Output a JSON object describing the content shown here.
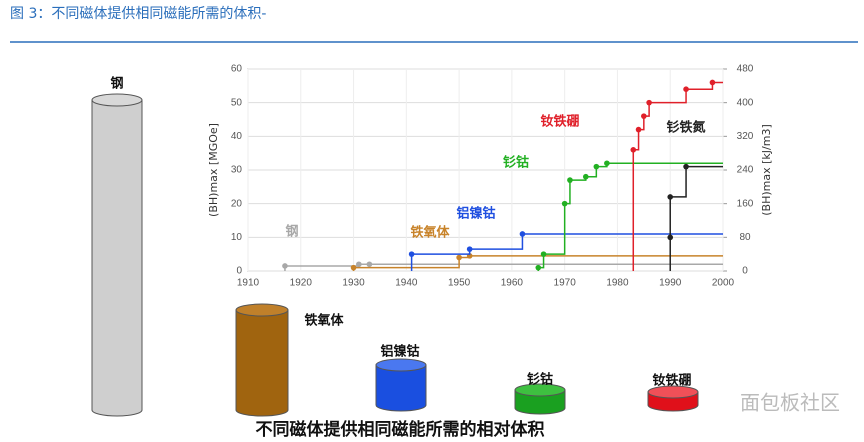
{
  "caption": "图 3：不同磁体提供相同磁能所需的体积-",
  "chart_data": {
    "type": "step",
    "y_label": "(BH)max [MGOe]",
    "y2_label": "(BH)max [kJ/m3]",
    "xlim": [
      1910,
      2000
    ],
    "xticks": [
      1910,
      1920,
      1930,
      1940,
      1950,
      1960,
      1970,
      1980,
      1990,
      2000
    ],
    "ylim": [
      0,
      60
    ],
    "yticks": [
      0,
      10,
      20,
      30,
      40,
      50,
      60
    ],
    "y2lim": [
      0,
      480
    ],
    "y2ticks": [
      0,
      80,
      160,
      240,
      320,
      400,
      480
    ],
    "series": [
      {
        "name": "钢",
        "color": "#a8a8a8",
        "x": [
          1917,
          1931,
          1933
        ],
        "values": [
          1.5,
          2,
          2
        ]
      },
      {
        "name": "铁氧体",
        "color": "#c8832a",
        "x": [
          1930,
          1950,
          1952
        ],
        "values": [
          1,
          4,
          4.5
        ]
      },
      {
        "name": "铝镍钴",
        "color": "#1f4fe0",
        "x": [
          1941,
          1952,
          1962
        ],
        "values": [
          5,
          6.5,
          11
        ]
      },
      {
        "name": "钐钴",
        "color": "#22b022",
        "x": [
          1965,
          1966,
          1970,
          1971,
          1974,
          1976,
          1978
        ],
        "values": [
          1,
          5,
          20,
          27,
          28,
          31,
          32
        ]
      },
      {
        "name": "钕铁硼",
        "color": "#e0202a",
        "x": [
          1983,
          1984,
          1985,
          1986,
          1993,
          1998
        ],
        "values": [
          36,
          42,
          46,
          50,
          54,
          56
        ]
      },
      {
        "name": "钐铁氮",
        "color": "#222222",
        "x": [
          1990,
          1990,
          1993
        ],
        "values": [
          10,
          22,
          31
        ]
      }
    ],
    "cylinders": [
      "钢",
      "铁氧体",
      "铝镍钴",
      "钐钴",
      "钕铁硼"
    ],
    "cylinder_caption": "不同磁体提供相同磁能所需的相对体积"
  },
  "watermark": "面包板社区"
}
